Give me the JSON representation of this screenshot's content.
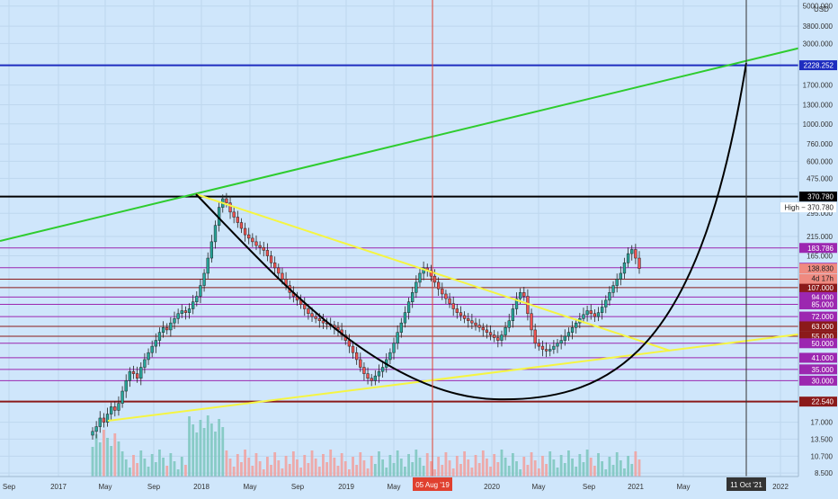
{
  "chart_data": {
    "type": "candlestick",
    "scale": "log",
    "currency_label": "USD",
    "y_ticks": [
      "5000.000",
      "3800.000",
      "3000.000",
      "2228.252",
      "1700.000",
      "1300.000",
      "1000.000",
      "760.000",
      "600.000",
      "475.000",
      "370.780",
      "295.000",
      "215.000",
      "183.786",
      "165.000",
      "140.245",
      "138.830",
      "107.000",
      "94.000",
      "85.000",
      "72.000",
      "63.000",
      "55.000",
      "50.000",
      "41.000",
      "35.000",
      "30.000",
      "22.540",
      "17.000",
      "13.500",
      "10.700",
      "8.500"
    ],
    "x_ticks": [
      "Sep",
      "2017",
      "May",
      "Sep",
      "2018",
      "May",
      "Sep",
      "2019",
      "May",
      "2020",
      "May",
      "Sep",
      "2021",
      "May",
      "2022"
    ],
    "vertical_markers": [
      {
        "label": "05 Aug '19",
        "color": "#e0402f"
      },
      {
        "label": "11 Oct '21",
        "color": "#333333"
      }
    ],
    "countdown_label": "4d 17h",
    "high_marker": {
      "label": "High",
      "value": "370.780"
    },
    "horizontal_levels": [
      {
        "value": 2228.252,
        "label": "2228.252",
        "color": "#1e2dbf"
      },
      {
        "value": 370.78,
        "label": "370.780",
        "color": "#000000"
      },
      {
        "value": 183.786,
        "label": "183.786",
        "color": "#9c27b0"
      },
      {
        "value": 140.245,
        "label": "140.245",
        "color": "#9c27b0"
      },
      {
        "value": 120.0,
        "label": "",
        "color": "#8b1a1a"
      },
      {
        "value": 107.0,
        "label": "107.000",
        "color": "#8b1a1a"
      },
      {
        "value": 94.0,
        "label": "94.000",
        "color": "#9c27b0"
      },
      {
        "value": 85.0,
        "label": "85.000",
        "color": "#9c27b0"
      },
      {
        "value": 72.0,
        "label": "72.000",
        "color": "#9c27b0"
      },
      {
        "value": 63.0,
        "label": "63.000",
        "color": "#8b1a1a"
      },
      {
        "value": 55.0,
        "label": "55.000",
        "color": "#8b1a1a"
      },
      {
        "value": 50.0,
        "label": "50.000",
        "color": "#9c27b0"
      },
      {
        "value": 41.0,
        "label": "41.000",
        "color": "#9c27b0"
      },
      {
        "value": 35.0,
        "label": "35.000",
        "color": "#9c27b0"
      },
      {
        "value": 30.0,
        "label": "30.000",
        "color": "#9c27b0"
      },
      {
        "value": 22.54,
        "label": "22.540",
        "color": "#8b1a1a"
      }
    ],
    "last_price": "138.830",
    "colors": {
      "up": "#26a69a",
      "down": "#ef5350",
      "background": "#cfe6fb",
      "trend_green": "#2ecc2e",
      "trend_yellow": "#f5f542",
      "arc": "#000000"
    },
    "candles_weekly_close": [
      15,
      16,
      18,
      17,
      19,
      21,
      20,
      22,
      26,
      30,
      34,
      33,
      31,
      36,
      40,
      44,
      48,
      52,
      58,
      62,
      60,
      66,
      70,
      75,
      78,
      76,
      80,
      88,
      95,
      110,
      130,
      160,
      200,
      250,
      320,
      360,
      340,
      300,
      280,
      260,
      240,
      220,
      210,
      200,
      190,
      185,
      178,
      165,
      150,
      140,
      130,
      120,
      110,
      100,
      95,
      90,
      85,
      80,
      75,
      72,
      70,
      68,
      66,
      65,
      64,
      62,
      60,
      56,
      52,
      48,
      44,
      40,
      36,
      33,
      31,
      30,
      32,
      34,
      36,
      40,
      44,
      50,
      58,
      66,
      76,
      88,
      100,
      115,
      130,
      140,
      135,
      125,
      115,
      105,
      98,
      92,
      86,
      80,
      76,
      73,
      70,
      68,
      66,
      64,
      62,
      60,
      58,
      56,
      54,
      52,
      56,
      62,
      68,
      80,
      92,
      100,
      95,
      75,
      60,
      50,
      48,
      46,
      45,
      46,
      48,
      50,
      52,
      55,
      58,
      62,
      66,
      70,
      74,
      78,
      75,
      72,
      76,
      82,
      90,
      100,
      110,
      120,
      130,
      150,
      170,
      180,
      160,
      138.83
    ]
  }
}
